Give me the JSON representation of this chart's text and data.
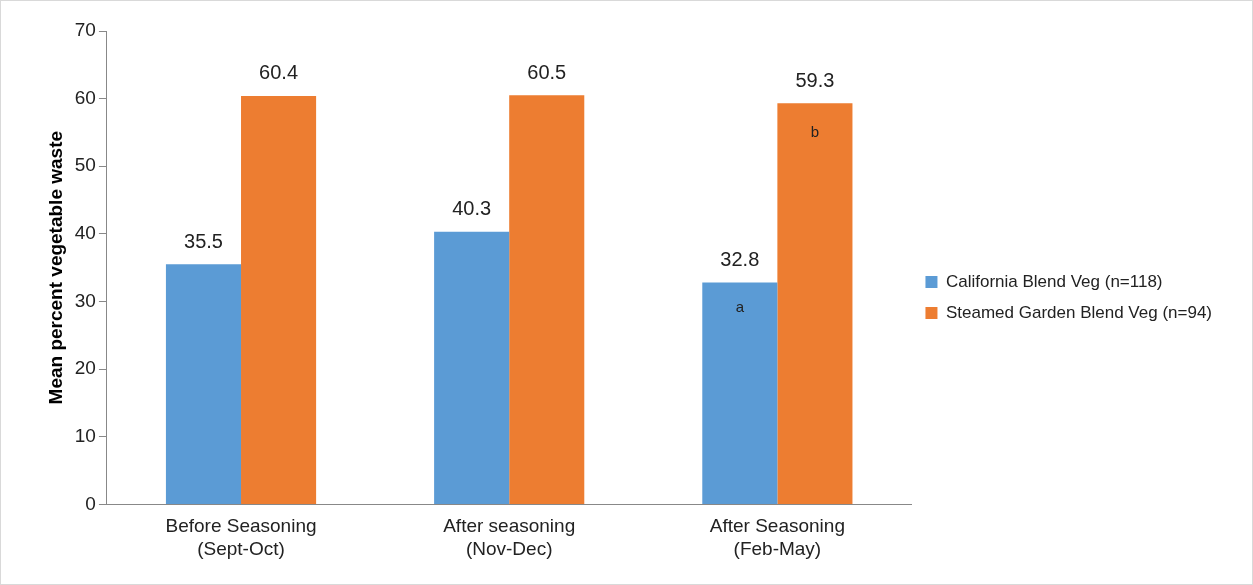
{
  "chart_data": {
    "type": "bar",
    "ylabel": "Mean percent vegetable waste",
    "categories": [
      "Before Seasoning\n(Sept-Oct)",
      "After seasoning\n(Nov-Dec)",
      "After Seasoning\n(Feb-May)"
    ],
    "series": [
      {
        "name": "California Blend Veg (n=118)",
        "color": "#5b9bd5",
        "values": [
          35.5,
          40.3,
          32.8
        ]
      },
      {
        "name": "Steamed Garden Blend Veg (n=94)",
        "color": "#ed7d31",
        "values": [
          60.4,
          60.5,
          59.3
        ]
      }
    ],
    "ylim": [
      0,
      70
    ],
    "yticks": [
      0,
      10,
      20,
      30,
      40,
      50,
      60,
      70
    ],
    "grid": false,
    "legend": "right",
    "data_labels": true,
    "annotations": [
      {
        "text": "a",
        "x": "After Seasoning\n(Feb-May)",
        "y": 29
      },
      {
        "text": "b",
        "x": "After Seasoning\n(Feb-May)",
        "y": 55
      }
    ]
  }
}
